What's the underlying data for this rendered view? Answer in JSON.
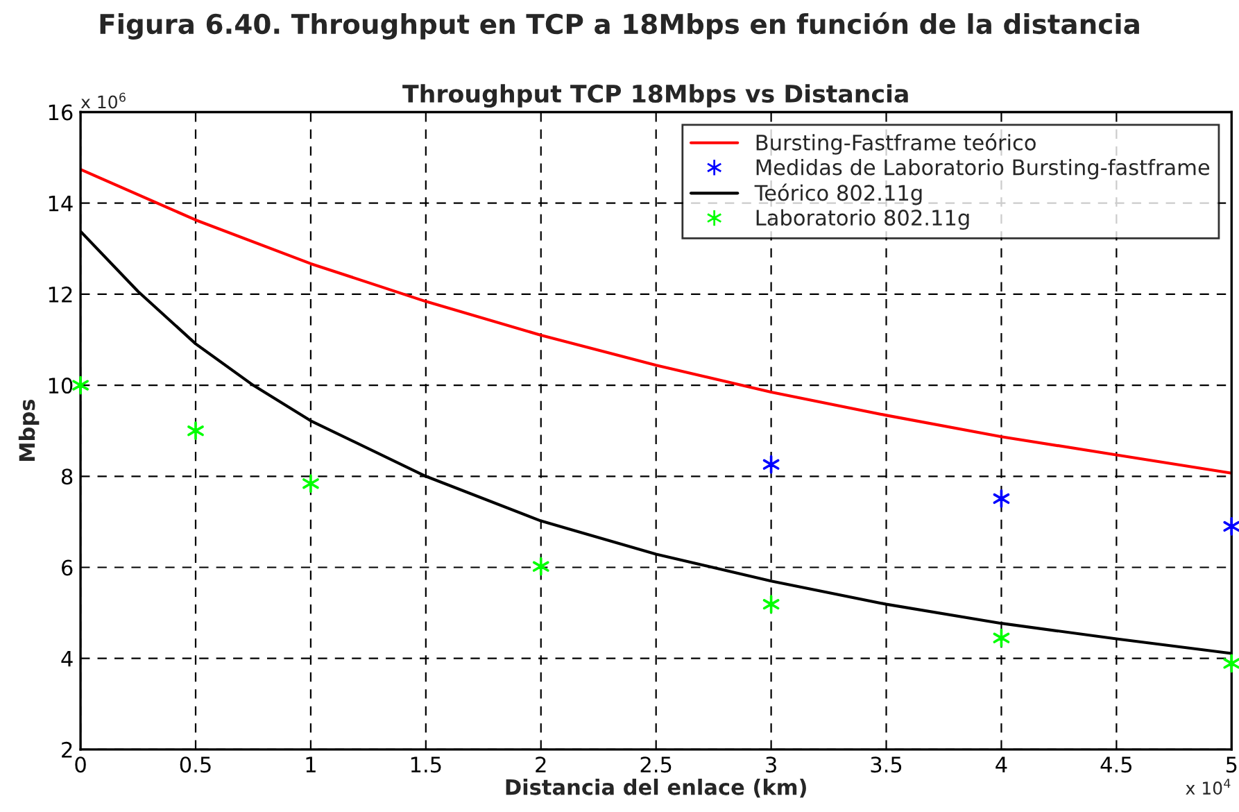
{
  "chart_data": {
    "type": "line",
    "title": "Figura 6.40. Throughput en TCP a 18Mbps en función de la distancia",
    "subtitle": "Throughput TCP 18Mbps vs Distancia",
    "xlabel": "Distancia del enlace (km)",
    "ylabel": "Mbps",
    "annotations": [
      "x 10$^{6}$",
      "x 10$^{4}$"
    ],
    "series": [
      {
        "name": "Bursting-Fastframe teórico",
        "color": "#ff0000",
        "line_style": "solid",
        "marker": "none",
        "x": [
          0,
          0.5,
          1,
          1.5,
          2,
          2.5,
          3,
          3.5,
          4,
          4.5,
          5
        ],
        "values": [
          14.74,
          13.63,
          12.67,
          11.84,
          11.1,
          10.44,
          9.85,
          9.34,
          8.87,
          8.47,
          8.07
        ]
      },
      {
        "name": "Medidas de Laboratorio Bursting-fastframe",
        "type": "scatter",
        "color": "#0000ff",
        "marker": "cross",
        "x": [
          3,
          4,
          5
        ],
        "values": [
          8.26,
          7.51,
          6.9
        ]
      },
      {
        "name": "Teórico 802.11g",
        "color": "#000000",
        "line_style": "solid",
        "marker": "none",
        "x": [
          0,
          0.25,
          0.5,
          0.75,
          1,
          1.5,
          2,
          2.5,
          3,
          3.5,
          4,
          4.5,
          5
        ],
        "values": [
          13.38,
          12.06,
          10.91,
          10.0,
          9.22,
          8.0,
          7.02,
          6.29,
          5.7,
          5.19,
          4.77,
          4.43,
          4.11
        ]
      },
      {
        "name": "Laboratorio 802.11g",
        "type": "scatter",
        "color": "#00ff00",
        "marker": "cross",
        "x": [
          0,
          0.5,
          1,
          2,
          3,
          4,
          5
        ],
        "values": [
          10.0,
          9.0,
          7.84,
          6.02,
          5.19,
          4.45,
          3.89
        ]
      }
    ],
    "xlim": [
      0,
      5
    ],
    "ylim": [
      2,
      16
    ],
    "xticks": [
      0,
      0.5,
      1,
      1.5,
      2,
      2.5,
      3,
      3.5,
      4,
      4.5,
      5
    ],
    "yticks": [
      2,
      4,
      6,
      8,
      10,
      12,
      14,
      16
    ],
    "grid": true,
    "legend": "top right"
  }
}
